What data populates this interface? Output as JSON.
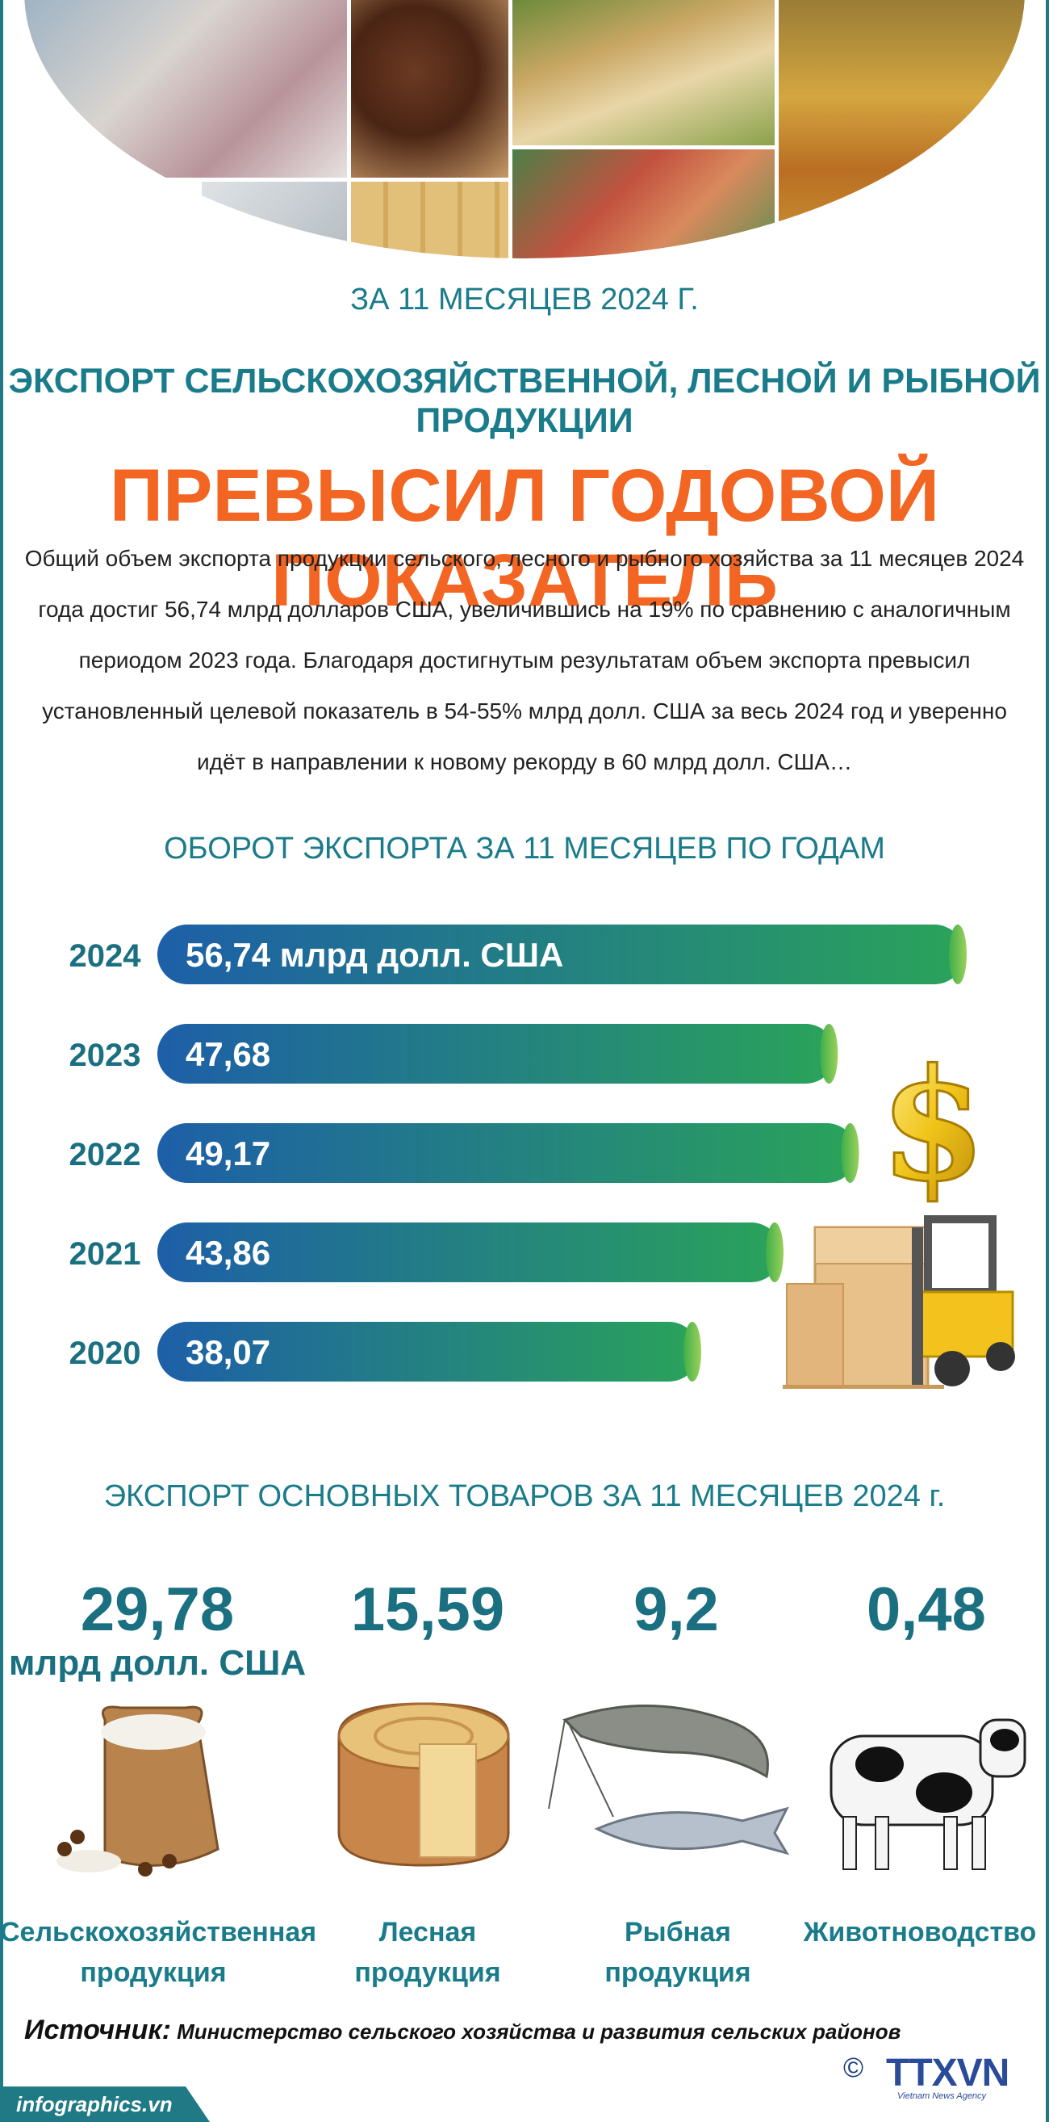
{
  "header": {
    "period": "ЗА 11 МЕСЯЦЕВ 2024 Г.",
    "title_line1": "ЭКСПОРТ СЕЛЬСКОХОЗЯЙСТВЕННОЙ, ЛЕСНОЙ И РЫБНОЙ ПРОДУКЦИИ",
    "title_line2": "ПРЕВЫСИЛ ГОДОВОЙ ПОКАЗАТЕЛЬ"
  },
  "intro": {
    "text": "Общий объем экспорта продукции сельского, лесного и рыбного  хозяйства за 11 месяцев 2024 года достиг 56,74 млрд долларов США, увеличившись на 19% по сравнению с аналогичным периодом 2023 года. Благодаря достигнутым результатам объем экспорта превысил установленный целевой показатель в 54-55% млрд долл. США за весь 2024 год и уверенно идёт в направлении к новому рекорду в 60 млрд долл. США…"
  },
  "chart_data": [
    {
      "type": "bar",
      "orientation": "horizontal",
      "title": "ОБОРОТ ЭКСПОРТА ЗА 11 МЕСЯЦЕВ ПО ГОДАМ",
      "categories": [
        "2024",
        "2023",
        "2022",
        "2021",
        "2020"
      ],
      "values": [
        56.74,
        47.68,
        49.17,
        43.86,
        38.07
      ],
      "value_labels": [
        "56,74 млрд долл. США",
        "47,68",
        "49,17",
        "43,86",
        "38,07"
      ],
      "xlim": [
        0,
        56.74
      ],
      "grid": false
    },
    {
      "type": "table",
      "title": "ЭКСПОРТ ОСНОВНЫХ ТОВАРОВ ЗА 11 МЕСЯЦЕВ 2024 г.",
      "unit": "млрд долл. США",
      "items": [
        {
          "label": "Сельскохозяйственная продукция",
          "value_label": "29,78",
          "value": 29.78,
          "icon": "rice-sack-icon"
        },
        {
          "label": "Лесная продукция",
          "value_label": "15,59",
          "value": 15.59,
          "icon": "wood-log-icon"
        },
        {
          "label": "Рыбная продукция",
          "value_label": "9,2",
          "value": 9.2,
          "icon": "shrimp-fish-icon"
        },
        {
          "label": "Животноводство",
          "value_label": "0,48",
          "value": 0.48,
          "icon": "cow-icon"
        }
      ]
    }
  ],
  "products_labels": {
    "p0_l1": "Сельскохозяйственная",
    "p0_l2": "продукция",
    "p1_l1": "Лесная",
    "p1_l2": "продукция",
    "p2_l1": "Рыбная",
    "p2_l2": "продукция",
    "p3_l1": "Животноводство"
  },
  "source": {
    "label": "Источник:",
    "value": "Министерство сельского хозяйства и развития сельских районов"
  },
  "footer": {
    "site": "infographics.vn",
    "copyright": "©",
    "logo": "TTXVN",
    "logo_sub": "Vietnam News Agency"
  },
  "colors": {
    "teal": "#1a7c8a",
    "orange": "#f26522",
    "bar_start": "#1d5fa8",
    "bar_end": "#2aa35a"
  }
}
